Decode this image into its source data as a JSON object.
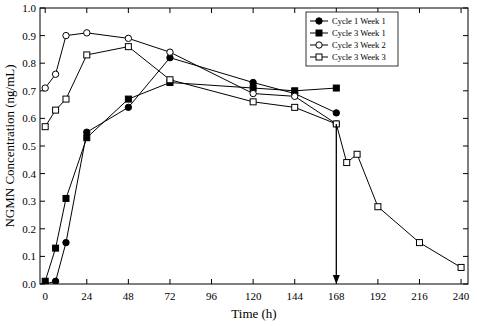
{
  "chart_data": {
    "type": "line",
    "x_label": "Time (h)",
    "y_label": "NGMN Concentration (ng/mL)",
    "xlim": [
      -3,
      244
    ],
    "xticks": [
      0,
      24,
      48,
      72,
      96,
      120,
      144,
      168,
      192,
      216,
      240
    ],
    "ylim": [
      0,
      1
    ],
    "yticks": [
      {
        "value": 0,
        "label": "0.0"
      },
      0.1,
      0.2,
      0.3,
      0.4,
      0.5,
      0.6,
      0.7,
      0.8,
      0.9,
      {
        "value": 1,
        "label": "1.0"
      }
    ],
    "grid": false,
    "legend": "top-right",
    "series": [
      {
        "name": "Cycle 1 Week 1",
        "color": "#000000",
        "marker": "circle",
        "x": [
          0,
          6,
          12,
          24,
          48,
          72,
          120,
          144,
          168
        ],
        "values": [
          0.0,
          0.01,
          0.15,
          0.55,
          0.64,
          0.82,
          0.73,
          0.69,
          0.62
        ]
      },
      {
        "name": "Cycle 3 Week 1",
        "color": "#000000",
        "marker": "square",
        "x": [
          0,
          6,
          12,
          24,
          48,
          72,
          120,
          144,
          168
        ],
        "values": [
          0.01,
          0.13,
          0.31,
          0.53,
          0.67,
          0.73,
          0.71,
          0.7,
          0.71
        ]
      },
      {
        "name": "Cycle 3 Week 2",
        "color": "#000000",
        "marker": "circle-open",
        "x": [
          0,
          6,
          12,
          24,
          48,
          72,
          120,
          144,
          168
        ],
        "values": [
          0.71,
          0.76,
          0.9,
          0.91,
          0.89,
          0.84,
          0.69,
          0.68,
          0.58
        ]
      },
      {
        "name": "Cycle 3 Week 3",
        "color": "#000000",
        "marker": "square-open",
        "x": [
          0,
          6,
          12,
          24,
          48,
          72,
          120,
          144,
          168,
          174,
          180,
          192,
          216,
          240
        ],
        "values": [
          0.57,
          0.63,
          0.67,
          0.83,
          0.86,
          0.74,
          0.66,
          0.64,
          0.58,
          0.44,
          0.47,
          0.28,
          0.15,
          0.06
        ]
      }
    ],
    "arrow": {
      "x": 168,
      "from": 0.58,
      "to": 0
    }
  }
}
